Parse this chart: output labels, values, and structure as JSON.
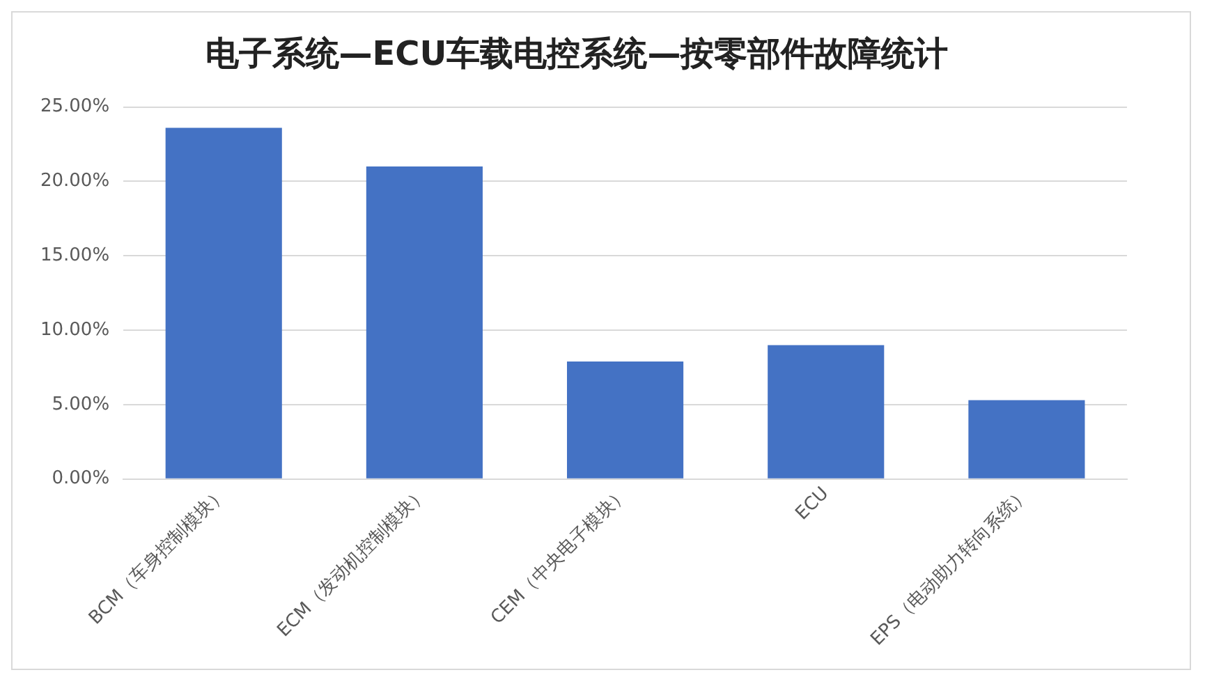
{
  "chart_data": {
    "type": "bar",
    "title": "电子系统—ECU车载电控系统—按零部件故障统计",
    "categories": [
      "BCM（车身控制模块）",
      "ECM（发动机控制模块）",
      "CEM（中央电子模块）",
      "ECU",
      "EPS（电动助力转向系统）"
    ],
    "values": [
      23.6,
      21.0,
      7.9,
      9.0,
      5.3
    ],
    "color": "#4472c4",
    "ylim": [
      0,
      25
    ],
    "yticks": [
      {
        "value": 0,
        "label": "0.00%"
      },
      {
        "value": 5,
        "label": "5.00%"
      },
      {
        "value": 10,
        "label": "10.00%"
      },
      {
        "value": 15,
        "label": "15.00%"
      },
      {
        "value": 20,
        "label": "20.00%"
      },
      {
        "value": 25,
        "label": "25.00%"
      }
    ],
    "grid": "y",
    "legend": false
  }
}
